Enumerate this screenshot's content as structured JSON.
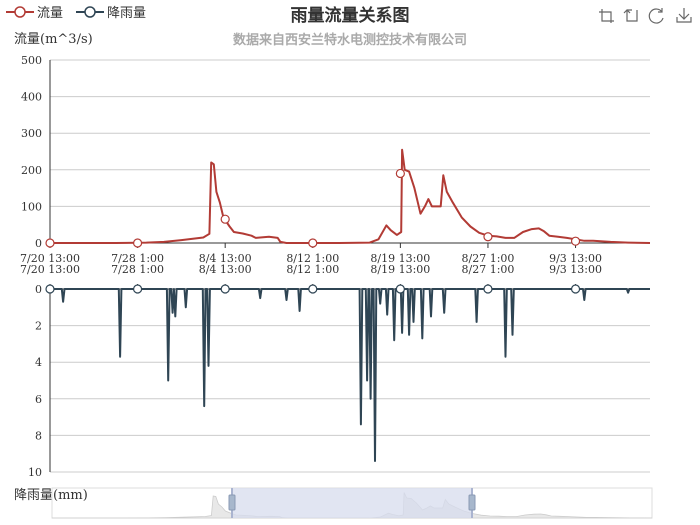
{
  "title": "雨量流量关系图",
  "subtitle": "数据来自西安兰特水电测控技术有限公司",
  "toolbox": [
    "zoom-icon",
    "zoom-reset-icon",
    "restore-icon",
    "save-image-icon"
  ],
  "colors": {
    "flow": "#b23b35",
    "rain": "#2f4554",
    "grid": "#ccc",
    "zoom_fill": "#d7dced"
  },
  "chart_data": {
    "type": "line",
    "legend": [
      "流量",
      "降雨量"
    ],
    "x_labels": [
      "7/20 13:00",
      "7/28 1:00",
      "8/4 13:00",
      "8/12 1:00",
      "8/19 13:00",
      "8/27 1:00",
      "9/3 13:00"
    ],
    "x_range_days": [
      0,
      68.5
    ],
    "flow": {
      "name": "流量",
      "ylabel": "流量(m^3/s)",
      "ylim": [
        0,
        500
      ],
      "yticks": [
        0,
        100,
        200,
        300,
        400,
        500
      ],
      "points": [
        [
          0,
          0
        ],
        [
          7.5,
          0
        ],
        [
          11,
          1
        ],
        [
          13,
          3
        ],
        [
          15,
          8
        ],
        [
          17.5,
          15
        ],
        [
          18.2,
          25
        ],
        [
          18.4,
          220
        ],
        [
          18.7,
          215
        ],
        [
          19,
          140
        ],
        [
          19.4,
          110
        ],
        [
          19.8,
          70
        ],
        [
          20.5,
          45
        ],
        [
          21,
          30
        ],
        [
          22,
          26
        ],
        [
          23,
          20
        ],
        [
          23.5,
          14
        ],
        [
          25,
          17
        ],
        [
          26,
          14
        ],
        [
          26.3,
          3
        ],
        [
          27,
          0
        ],
        [
          30,
          0
        ],
        [
          33,
          0
        ],
        [
          36.5,
          1
        ],
        [
          37.5,
          10
        ],
        [
          38.4,
          48
        ],
        [
          38.9,
          35
        ],
        [
          39.6,
          22
        ],
        [
          40.1,
          30
        ],
        [
          40.2,
          255
        ],
        [
          40.5,
          200
        ],
        [
          41,
          195
        ],
        [
          41.6,
          150
        ],
        [
          42.3,
          80
        ],
        [
          42.8,
          100
        ],
        [
          43.2,
          120
        ],
        [
          43.6,
          100
        ],
        [
          44.6,
          100
        ],
        [
          44.9,
          185
        ],
        [
          45.3,
          140
        ],
        [
          46,
          110
        ],
        [
          47,
          70
        ],
        [
          48,
          45
        ],
        [
          49,
          28
        ],
        [
          50,
          20
        ],
        [
          51,
          18
        ],
        [
          52,
          14
        ],
        [
          53,
          14
        ],
        [
          54,
          30
        ],
        [
          55,
          38
        ],
        [
          55.8,
          40
        ],
        [
          56.4,
          32
        ],
        [
          57,
          20
        ],
        [
          58,
          17
        ],
        [
          59,
          14
        ],
        [
          60,
          10
        ],
        [
          61,
          6
        ],
        [
          62,
          6
        ],
        [
          64,
          3
        ],
        [
          66,
          1
        ],
        [
          68.5,
          0
        ]
      ],
      "markers": [
        [
          0,
          0
        ],
        [
          10,
          0
        ],
        [
          20,
          65
        ],
        [
          30,
          0
        ],
        [
          40,
          190
        ],
        [
          50,
          17
        ],
        [
          60,
          5
        ]
      ]
    },
    "rain": {
      "name": "降雨量",
      "ylabel": "降雨量(mm)",
      "ylim": [
        0,
        10
      ],
      "yticks": [
        0,
        2,
        4,
        6,
        8,
        10
      ],
      "spikes": [
        [
          1.5,
          0.7
        ],
        [
          8,
          3.7
        ],
        [
          13.5,
          5.0
        ],
        [
          14,
          1.3
        ],
        [
          14.3,
          1.5
        ],
        [
          15.5,
          1.0
        ],
        [
          17.6,
          6.4
        ],
        [
          18.1,
          4.2
        ],
        [
          24,
          0.5
        ],
        [
          27,
          0.6
        ],
        [
          28.5,
          1.2
        ],
        [
          35.5,
          7.4
        ],
        [
          36.2,
          5.0
        ],
        [
          36.6,
          6.0
        ],
        [
          37.1,
          9.4
        ],
        [
          37.7,
          0.8
        ],
        [
          38.5,
          1.4
        ],
        [
          39.3,
          2.8
        ],
        [
          40.2,
          2.4
        ],
        [
          41,
          2.5
        ],
        [
          41.5,
          1.8
        ],
        [
          42.5,
          2.7
        ],
        [
          43.5,
          1.5
        ],
        [
          45,
          1.3
        ],
        [
          48.7,
          1.8
        ],
        [
          52,
          3.7
        ],
        [
          52.8,
          2.5
        ],
        [
          61,
          0.6
        ],
        [
          66,
          0.2
        ]
      ],
      "markers": [
        [
          0,
          0
        ],
        [
          10,
          0
        ],
        [
          20,
          0
        ],
        [
          30,
          0
        ],
        [
          40,
          0
        ],
        [
          50,
          0
        ],
        [
          60,
          0
        ]
      ]
    },
    "dataZoom": {
      "start_fraction": 0.3,
      "end_fraction": 0.7
    }
  }
}
